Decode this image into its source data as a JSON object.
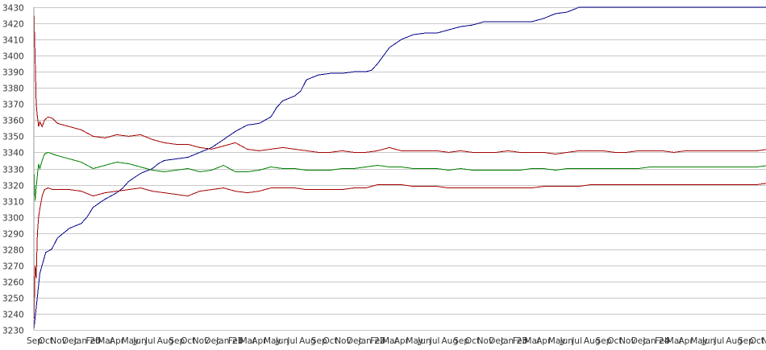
{
  "chart_data": {
    "type": "line",
    "title": "",
    "xlabel": "",
    "ylabel": "",
    "ylim": [
      3230,
      3430
    ],
    "yticks": [
      3230,
      3240,
      3250,
      3260,
      3270,
      3280,
      3290,
      3300,
      3310,
      3320,
      3330,
      3340,
      3350,
      3360,
      3370,
      3380,
      3390,
      3400,
      3410,
      3420,
      3430
    ],
    "grid": true,
    "legend": "none",
    "x_tick_labels": [
      "Sep",
      "Oct",
      "Nov",
      "Dec",
      "Jan 20",
      "Feb",
      "Mar",
      "Apr",
      "May",
      "Jun",
      "Jul",
      "Aug",
      "Sep",
      "Oct",
      "Nov",
      "Dec",
      "Jan 21",
      "Feb",
      "Mar",
      "Apr",
      "May",
      "Jun",
      "Jul",
      "Aug",
      "Sep",
      "Oct",
      "Nov",
      "Dec",
      "Jan 22",
      "Feb",
      "Mar",
      "Apr",
      "May",
      "Jun",
      "Jul",
      "Aug",
      "Sep",
      "Oct",
      "Nov",
      "Dec",
      "Jan 23",
      "Feb",
      "Mar",
      "Apr",
      "May",
      "Jun",
      "Jul",
      "Aug",
      "Sep",
      "Oct",
      "Nov",
      "Dec",
      "Jan 24",
      "Feb",
      "Mar",
      "Apr",
      "May",
      "Jun",
      "Jul",
      "Aug",
      "Sep",
      "Oct",
      "Nov"
    ],
    "series": [
      {
        "color": "#00008b",
        "x": [
          0,
          0.5,
          1,
          1.5,
          2,
          3,
          4,
          4.5,
          5,
          6,
          7,
          7.5,
          8,
          9,
          10,
          10.5,
          11,
          12,
          13,
          14,
          15,
          16,
          17,
          18,
          19,
          20,
          20.5,
          21,
          22,
          22.5,
          23,
          24,
          25,
          26,
          27,
          27.5,
          28,
          28.5,
          29,
          29.5,
          30,
          31,
          32,
          33,
          33.5,
          34,
          35,
          36,
          37,
          38,
          39,
          40,
          41,
          42,
          43,
          44,
          45,
          46,
          47,
          48,
          49,
          50,
          51,
          52,
          53,
          54,
          55,
          56,
          57,
          58,
          59,
          60,
          61,
          62
        ],
        "y": [
          3230,
          3265,
          3278,
          3280,
          3287,
          3293,
          3296,
          3300,
          3306,
          3311,
          3315,
          3318,
          3322,
          3327,
          3330,
          3333,
          3335,
          3336,
          3337,
          3340,
          3343,
          3348,
          3353,
          3357,
          3358,
          3362,
          3368,
          3372,
          3375,
          3378,
          3385,
          3388,
          3389,
          3389,
          3390,
          3390,
          3390,
          3391,
          3395,
          3400,
          3405,
          3410,
          3413,
          3414,
          3414,
          3414,
          3416,
          3418,
          3419,
          3421,
          3421,
          3421,
          3421,
          3421,
          3423,
          3426,
          3427,
          3430,
          3430,
          3430,
          3430,
          3430,
          3430,
          3430,
          3430,
          3430,
          3430,
          3430,
          3430,
          3430,
          3430,
          3430,
          3430,
          3430
        ]
      },
      {
        "color": "#a50000",
        "x": [
          0,
          0.1,
          0.2,
          0.3,
          0.4,
          0.5,
          0.7,
          0.9,
          1.2,
          1.6,
          2,
          3,
          4,
          5,
          6,
          7,
          8,
          9,
          10,
          11,
          12,
          13,
          14,
          15,
          16,
          17,
          18,
          19,
          20,
          21,
          22,
          23,
          24,
          25,
          26,
          27,
          28,
          29,
          30,
          31,
          32,
          33,
          34,
          35,
          36,
          37,
          38,
          39,
          40,
          41,
          42,
          43,
          44,
          45,
          46,
          47,
          48,
          49,
          50,
          51,
          52,
          53,
          54,
          55,
          56,
          57,
          58,
          59,
          60,
          61,
          62
        ],
        "y": [
          3430,
          3400,
          3370,
          3362,
          3356,
          3359,
          3356,
          3360,
          3362,
          3361,
          3358,
          3356,
          3354,
          3350,
          3349,
          3351,
          3350,
          3351,
          3348,
          3346,
          3345,
          3345,
          3343,
          3342,
          3344,
          3346,
          3342,
          3341,
          3342,
          3343,
          3342,
          3341,
          3340,
          3340,
          3341,
          3340,
          3340,
          3341,
          3343,
          3341,
          3341,
          3341,
          3341,
          3340,
          3341,
          3340,
          3340,
          3340,
          3341,
          3340,
          3340,
          3340,
          3339,
          3340,
          3341,
          3341,
          3341,
          3340,
          3340,
          3341,
          3341,
          3341,
          3340,
          3341,
          3341,
          3341,
          3341,
          3341,
          3341,
          3341,
          3342
        ]
      },
      {
        "color": "#008000",
        "x": [
          0,
          0.1,
          0.2,
          0.3,
          0.4,
          0.5,
          0.7,
          0.9,
          1.2,
          1.6,
          2,
          3,
          4,
          5,
          6,
          7,
          8,
          9,
          10,
          11,
          12,
          13,
          14,
          15,
          16,
          17,
          18,
          19,
          20,
          21,
          22,
          23,
          24,
          25,
          26,
          27,
          28,
          29,
          30,
          31,
          32,
          33,
          34,
          35,
          36,
          37,
          38,
          39,
          40,
          41,
          42,
          43,
          44,
          45,
          46,
          47,
          48,
          49,
          50,
          51,
          52,
          53,
          54,
          55,
          56,
          57,
          58,
          59,
          60,
          61,
          62
        ],
        "y": [
          3330,
          3310,
          3318,
          3326,
          3333,
          3330,
          3335,
          3339,
          3340,
          3339,
          3338,
          3336,
          3334,
          3330,
          3332,
          3334,
          3333,
          3331,
          3329,
          3328,
          3329,
          3330,
          3328,
          3329,
          3332,
          3328,
          3328,
          3329,
          3331,
          3330,
          3330,
          3329,
          3329,
          3329,
          3330,
          3330,
          3331,
          3332,
          3331,
          3331,
          3330,
          3330,
          3330,
          3329,
          3330,
          3329,
          3329,
          3329,
          3329,
          3329,
          3330,
          3330,
          3329,
          3330,
          3330,
          3330,
          3330,
          3330,
          3330,
          3330,
          3331,
          3331,
          3331,
          3331,
          3331,
          3331,
          3331,
          3331,
          3331,
          3331,
          3332
        ]
      },
      {
        "color": "#a50000",
        "x": [
          0,
          0.1,
          0.2,
          0.3,
          0.4,
          0.5,
          0.7,
          0.9,
          1.2,
          1.6,
          2,
          3,
          4,
          5,
          6,
          7,
          8,
          9,
          10,
          11,
          12,
          13,
          14,
          15,
          16,
          17,
          18,
          19,
          20,
          21,
          22,
          23,
          24,
          25,
          26,
          27,
          28,
          29,
          30,
          31,
          32,
          33,
          34,
          35,
          36,
          37,
          38,
          39,
          40,
          41,
          42,
          43,
          44,
          45,
          46,
          47,
          48,
          49,
          50,
          51,
          52,
          53,
          54,
          55,
          56,
          57,
          58,
          59,
          60,
          61,
          62
        ],
        "y": [
          3230,
          3270,
          3262,
          3290,
          3300,
          3305,
          3313,
          3317,
          3318,
          3317,
          3317,
          3317,
          3316,
          3313,
          3315,
          3316,
          3317,
          3318,
          3316,
          3315,
          3314,
          3313,
          3316,
          3317,
          3318,
          3316,
          3315,
          3316,
          3318,
          3318,
          3318,
          3317,
          3317,
          3317,
          3317,
          3318,
          3318,
          3320,
          3320,
          3320,
          3319,
          3319,
          3319,
          3318,
          3318,
          3318,
          3318,
          3318,
          3318,
          3318,
          3318,
          3319,
          3319,
          3319,
          3319,
          3320,
          3320,
          3320,
          3320,
          3320,
          3320,
          3320,
          3320,
          3320,
          3320,
          3320,
          3320,
          3320,
          3320,
          3320,
          3321
        ]
      }
    ]
  }
}
